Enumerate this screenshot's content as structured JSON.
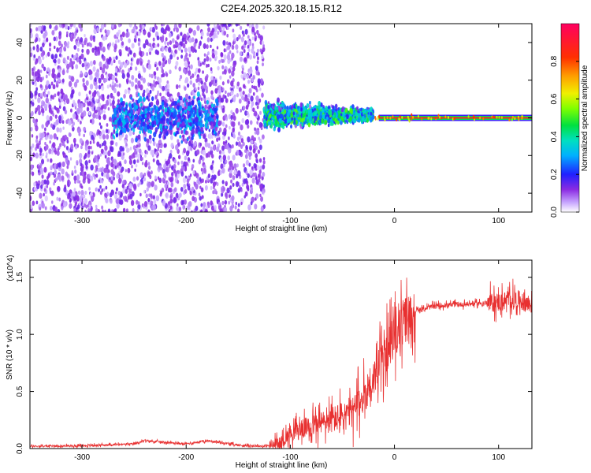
{
  "title": "C2E4.2025.320.18.15.R12",
  "colors": {
    "snr_line": "#e83030",
    "cbar_low": "#ffffff",
    "cbar_high": "#ff0055",
    "frame": "#000000"
  },
  "chart_data": [
    {
      "type": "heatmap",
      "name": "spectrogram",
      "xlabel": "Height of straight line (km)",
      "ylabel": "Frequency (Hz)",
      "xlim": [
        -350,
        132
      ],
      "ylim": [
        -50,
        50
      ],
      "xticks": [
        -300,
        -200,
        -100,
        0,
        100
      ],
      "yticks": [
        -40,
        -20,
        0,
        20,
        40
      ],
      "colorbar": {
        "label": "Normalized spectral amplitude",
        "range": [
          0,
          1
        ],
        "ticks": [
          0.0,
          0.2,
          0.4,
          0.6,
          0.8
        ],
        "tick_labels": [
          "0.0",
          "0.2",
          "0.4",
          "0.6",
          "0.8"
        ]
      },
      "regions": [
        {
          "x": [
            -350,
            -125
          ],
          "freq_spread_hz": 50,
          "amplitude": 0.12,
          "description": "broadband noise"
        },
        {
          "x": [
            -270,
            -170
          ],
          "freq_spread_hz": 8,
          "amplitude": 0.25
        },
        {
          "x": [
            -125,
            -20
          ],
          "freq_spread_hz": 8,
          "amplitude": 0.35
        },
        {
          "x": [
            -20,
            132
          ],
          "freq_center_hz": 0,
          "amplitude": 1.0,
          "description": "narrow carrier line"
        }
      ]
    },
    {
      "type": "line",
      "name": "snr",
      "xlabel": "Height of straight line (km)",
      "ylabel": "SNR (10 * v/v)",
      "y_multiplier": "(x10^4)",
      "xlim": [
        -350,
        132
      ],
      "ylim": [
        0,
        1.65
      ],
      "xticks": [
        -300,
        -200,
        -100,
        0,
        100
      ],
      "yticks": [
        0.0,
        0.5,
        1.0,
        1.5
      ],
      "ytick_labels": [
        "0.0",
        "0.5",
        "1.0",
        "1.5"
      ],
      "series": [
        {
          "name": "SNR",
          "x": [
            -350,
            -300,
            -250,
            -240,
            -200,
            -180,
            -150,
            -125,
            -110,
            -100,
            -80,
            -60,
            -40,
            -30,
            -20,
            -10,
            0,
            10,
            20,
            30,
            40,
            60,
            80,
            100,
            110,
            120,
            132
          ],
          "values": [
            0.02,
            0.025,
            0.04,
            0.07,
            0.04,
            0.07,
            0.03,
            0.02,
            0.04,
            0.14,
            0.2,
            0.25,
            0.32,
            0.45,
            0.62,
            0.8,
            1.0,
            1.12,
            1.2,
            1.23,
            1.25,
            1.26,
            1.27,
            1.28,
            1.3,
            1.3,
            1.26
          ]
        }
      ]
    }
  ]
}
